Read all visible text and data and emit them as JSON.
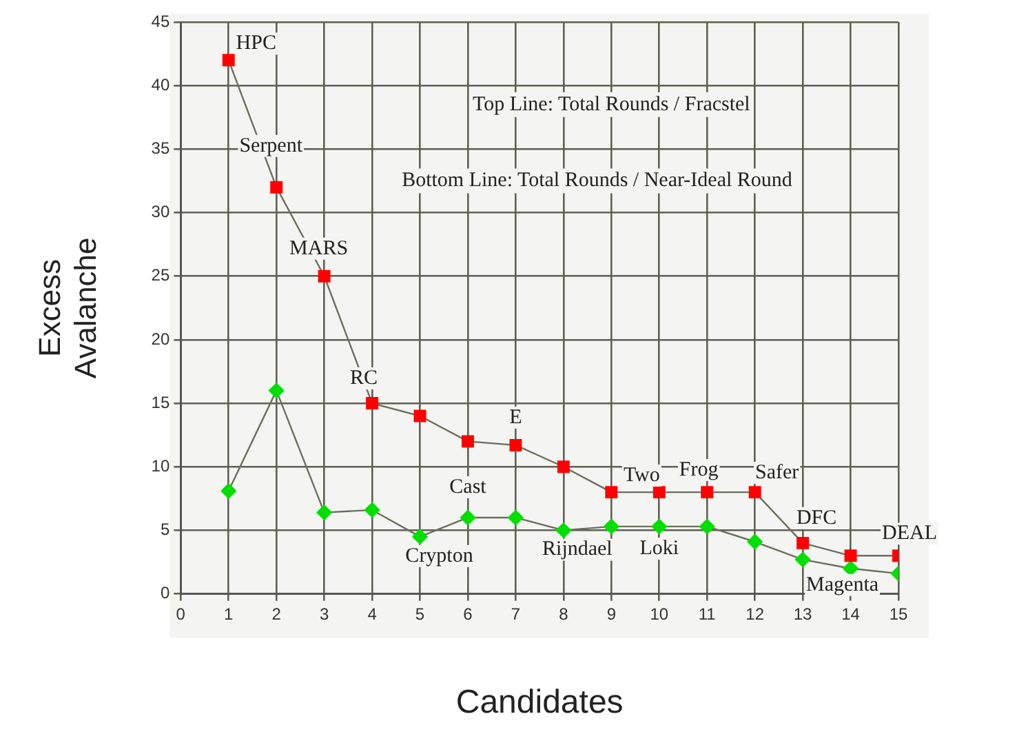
{
  "chart_data": {
    "type": "line",
    "xlabel": "Candidates",
    "ylabel": "Excess\nAvalanche",
    "x": [
      1,
      2,
      3,
      4,
      5,
      6,
      7,
      8,
      9,
      10,
      11,
      12,
      13,
      14,
      15
    ],
    "series": [
      {
        "color": "#ff0000",
        "marker": "square",
        "values": [
          42,
          32,
          25,
          15,
          14,
          12,
          11.7,
          10,
          8,
          8,
          8,
          8,
          4,
          3,
          3
        ]
      },
      {
        "color": "#00e000",
        "marker": "diamond",
        "values": [
          8.1,
          16,
          6.4,
          6.6,
          4.5,
          6,
          6,
          5,
          5.3,
          5.3,
          5.3,
          4.1,
          2.7,
          2,
          1.6
        ]
      }
    ],
    "xlim": [
      0,
      15
    ],
    "xticks": [
      0,
      1,
      2,
      3,
      4,
      5,
      6,
      7,
      8,
      9,
      10,
      11,
      12,
      13,
      14,
      15
    ],
    "ylim": [
      0,
      45
    ],
    "yticks": [
      0,
      5,
      10,
      15,
      20,
      25,
      30,
      35,
      40,
      45
    ],
    "grid": true,
    "legend": false,
    "line_style": "solid",
    "annotations": [
      "Top Line: Total Rounds / Fracstel",
      "Bottom Line: Total Rounds / Near-Ideal Round",
      {
        "text": "HPC",
        "x": 1,
        "y": 42
      },
      {
        "text": "Serpent",
        "x": 2,
        "y": 32
      },
      {
        "text": "MARS",
        "x": 3,
        "y": 25
      },
      {
        "text": "RC",
        "x": 4,
        "y": 15
      },
      {
        "text": "E",
        "x": 7,
        "y": 11.7
      },
      {
        "text": "Two",
        "x": 9,
        "y": 8
      },
      {
        "text": "Frog",
        "x": 11,
        "y": 8
      },
      {
        "text": "Safer",
        "x": 12,
        "y": 8
      },
      {
        "text": "DFC",
        "x": 13,
        "y": 4
      },
      {
        "text": "DEAL",
        "x": 15,
        "y": 3
      },
      {
        "text": "Cast",
        "x": 6,
        "y": 6
      },
      {
        "text": "Crypton",
        "x": 5,
        "y": 4.5
      },
      {
        "text": "Rijndael",
        "x": 8,
        "y": 5
      },
      {
        "text": "Loki",
        "x": 10,
        "y": 5.3
      },
      {
        "text": "Magenta",
        "x": 14,
        "y": 2
      }
    ]
  }
}
